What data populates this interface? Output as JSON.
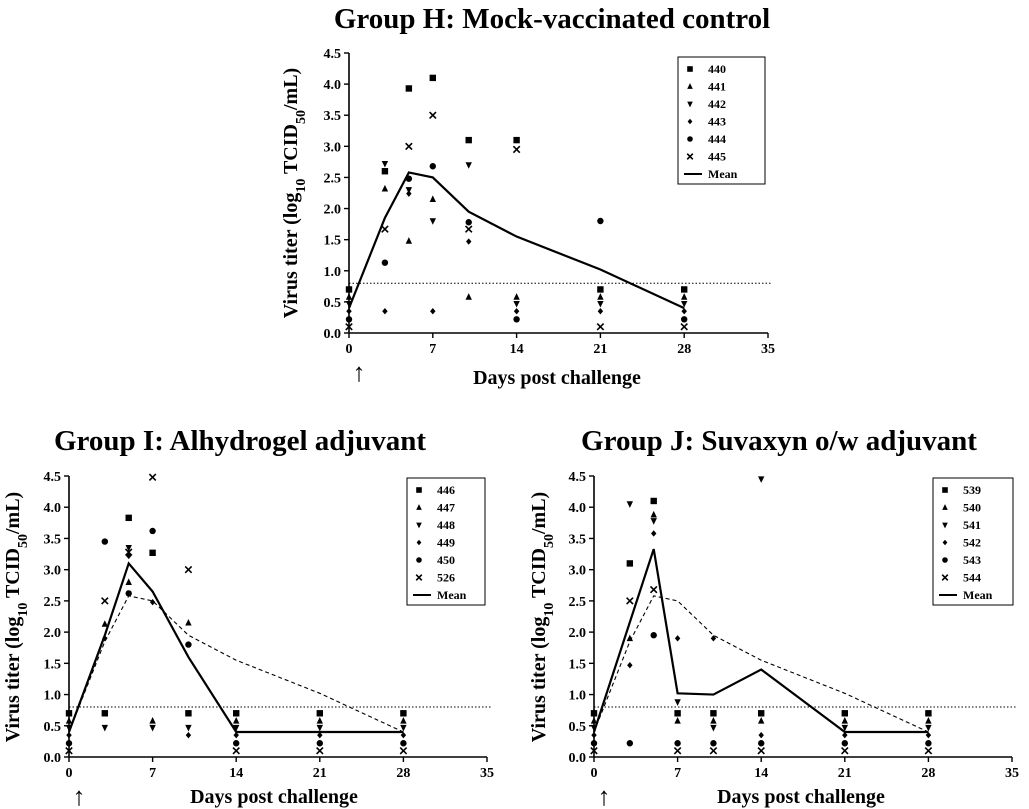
{
  "chart_data": [
    {
      "type": "scatter",
      "title": "Group H: Mock-vaccinated control",
      "xlabel": "Days post challenge",
      "ylabel_main": "Virus titer (log",
      "ylabel_sub10": "10",
      "ylabel_mid": " TCID",
      "ylabel_sub50": "50",
      "ylabel_end": "/mL)",
      "xlim": [
        0,
        35
      ],
      "ylim": [
        0,
        4.5
      ],
      "xticks": [
        "0",
        "7",
        "14",
        "21",
        "28",
        "35"
      ],
      "yticks": [
        "0.0",
        "0.5",
        "1.0",
        "1.5",
        "2.0",
        "2.5",
        "3.0",
        "3.5",
        "4.0",
        "4.5"
      ],
      "detection_limit": 0.8,
      "challenge_arrow": "↑",
      "legend_placement": "top-right",
      "series": [
        {
          "name": "440",
          "marker": "square",
          "points": [
            [
              0,
              0.7
            ],
            [
              3,
              2.6
            ],
            [
              5,
              3.93
            ],
            [
              7,
              4.1
            ],
            [
              10,
              3.1
            ],
            [
              14,
              3.1
            ],
            [
              21,
              0.7
            ],
            [
              28,
              0.7
            ]
          ]
        },
        {
          "name": "441",
          "marker": "triangle-up",
          "points": [
            [
              0,
              0.58
            ],
            [
              3,
              2.32
            ],
            [
              5,
              1.48
            ],
            [
              7,
              2.15
            ],
            [
              10,
              0.58
            ],
            [
              14,
              0.58
            ],
            [
              21,
              0.58
            ],
            [
              28,
              0.58
            ]
          ]
        },
        {
          "name": "442",
          "marker": "triangle-down",
          "points": [
            [
              0,
              0.47
            ],
            [
              3,
              2.72
            ],
            [
              5,
              2.3
            ],
            [
              7,
              1.8
            ],
            [
              10,
              2.7
            ],
            [
              14,
              0.47
            ],
            [
              21,
              0.47
            ],
            [
              28,
              0.47
            ]
          ]
        },
        {
          "name": "443",
          "marker": "diamond",
          "points": [
            [
              0,
              0.35
            ],
            [
              3,
              0.35
            ],
            [
              5,
              2.24
            ],
            [
              7,
              0.35
            ],
            [
              10,
              1.47
            ],
            [
              14,
              0.35
            ],
            [
              21,
              0.35
            ],
            [
              28,
              0.35
            ]
          ]
        },
        {
          "name": "444",
          "marker": "circle",
          "points": [
            [
              0,
              0.22
            ],
            [
              3,
              1.13
            ],
            [
              5,
              2.48
            ],
            [
              7,
              2.68
            ],
            [
              10,
              1.78
            ],
            [
              14,
              0.22
            ],
            [
              21,
              1.8
            ],
            [
              28,
              0.22
            ]
          ]
        },
        {
          "name": "445",
          "marker": "x",
          "points": [
            [
              0,
              0.1
            ],
            [
              3,
              1.67
            ],
            [
              5,
              3.0
            ],
            [
              7,
              3.5
            ],
            [
              10,
              1.67
            ],
            [
              14,
              2.95
            ],
            [
              21,
              0.1
            ],
            [
              28,
              0.1
            ]
          ]
        }
      ],
      "mean": {
        "name": "Mean",
        "points": [
          [
            0,
            0.4
          ],
          [
            3,
            1.85
          ],
          [
            5,
            2.58
          ],
          [
            7,
            2.5
          ],
          [
            10,
            1.95
          ],
          [
            14,
            1.55
          ],
          [
            21,
            1.02
          ],
          [
            28,
            0.4
          ]
        ]
      },
      "reference_mean": null
    },
    {
      "type": "scatter",
      "title": "Group I: Alhydrogel adjuvant",
      "xlabel": "Days post challenge",
      "ylabel_main": "Virus titer (log",
      "ylabel_sub10": "10",
      "ylabel_mid": " TCID",
      "ylabel_sub50": "50",
      "ylabel_end": "/mL)",
      "xlim": [
        0,
        35
      ],
      "ylim": [
        0,
        4.5
      ],
      "xticks": [
        "0",
        "7",
        "14",
        "21",
        "28",
        "35"
      ],
      "yticks": [
        "0.0",
        "0.5",
        "1.0",
        "1.5",
        "2.0",
        "2.5",
        "3.0",
        "3.5",
        "4.0",
        "4.5"
      ],
      "detection_limit": 0.8,
      "challenge_arrow": "↑",
      "legend_placement": "top-right",
      "series": [
        {
          "name": "446",
          "marker": "square",
          "points": [
            [
              0,
              0.7
            ],
            [
              3,
              0.7
            ],
            [
              5,
              3.83
            ],
            [
              7,
              3.27
            ],
            [
              10,
              0.7
            ],
            [
              14,
              0.7
            ],
            [
              21,
              0.7
            ],
            [
              28,
              0.7
            ]
          ]
        },
        {
          "name": "447",
          "marker": "triangle-up",
          "points": [
            [
              0,
              0.58
            ],
            [
              3,
              2.13
            ],
            [
              5,
              2.8
            ],
            [
              7,
              0.58
            ],
            [
              10,
              2.15
            ],
            [
              14,
              0.58
            ],
            [
              21,
              0.58
            ],
            [
              28,
              0.58
            ]
          ]
        },
        {
          "name": "448",
          "marker": "triangle-down",
          "points": [
            [
              0,
              0.47
            ],
            [
              3,
              0.47
            ],
            [
              5,
              3.35
            ],
            [
              7,
              0.47
            ],
            [
              10,
              0.47
            ],
            [
              14,
              0.47
            ],
            [
              21,
              0.47
            ],
            [
              28,
              0.47
            ]
          ]
        },
        {
          "name": "449",
          "marker": "diamond",
          "points": [
            [
              0,
              0.35
            ],
            [
              3,
              1.9
            ],
            [
              5,
              3.22
            ],
            [
              7,
              2.48
            ],
            [
              10,
              0.35
            ],
            [
              14,
              0.35
            ],
            [
              21,
              0.35
            ],
            [
              28,
              0.35
            ]
          ]
        },
        {
          "name": "450",
          "marker": "circle",
          "points": [
            [
              0,
              0.22
            ],
            [
              3,
              3.45
            ],
            [
              5,
              2.62
            ],
            [
              7,
              3.62
            ],
            [
              10,
              1.8
            ],
            [
              14,
              0.22
            ],
            [
              21,
              0.22
            ],
            [
              28,
              0.22
            ]
          ]
        },
        {
          "name": "526",
          "marker": "x",
          "points": [
            [
              0,
              0.1
            ],
            [
              3,
              2.5
            ],
            [
              5,
              3.28
            ],
            [
              7,
              4.48
            ],
            [
              10,
              3.0
            ],
            [
              14,
              0.1
            ],
            [
              21,
              0.1
            ],
            [
              28,
              0.1
            ]
          ]
        }
      ],
      "mean": {
        "name": "Mean",
        "points": [
          [
            0,
            0.4
          ],
          [
            3,
            1.95
          ],
          [
            5,
            3.1
          ],
          [
            7,
            2.65
          ],
          [
            10,
            1.6
          ],
          [
            14,
            0.4
          ],
          [
            21,
            0.4
          ],
          [
            28,
            0.4
          ]
        ]
      },
      "reference_mean": {
        "points": [
          [
            0,
            0.4
          ],
          [
            3,
            1.85
          ],
          [
            5,
            2.58
          ],
          [
            7,
            2.5
          ],
          [
            10,
            1.95
          ],
          [
            14,
            1.55
          ],
          [
            21,
            1.02
          ],
          [
            28,
            0.4
          ]
        ]
      }
    },
    {
      "type": "scatter",
      "title": "Group J: Suvaxyn o/w adjuvant",
      "xlabel": "Days post challenge",
      "ylabel_main": "Virus titer (log",
      "ylabel_sub10": "10",
      "ylabel_mid": " TCID",
      "ylabel_sub50": "50",
      "ylabel_end": "/mL)",
      "xlim": [
        0,
        35
      ],
      "ylim": [
        0,
        4.5
      ],
      "xticks": [
        "0",
        "7",
        "14",
        "21",
        "28",
        "35"
      ],
      "yticks": [
        "0.0",
        "0.5",
        "1.0",
        "1.5",
        "2.0",
        "2.5",
        "3.0",
        "3.5",
        "4.0",
        "4.5"
      ],
      "detection_limit": 0.8,
      "challenge_arrow": "↑",
      "legend_placement": "top-right",
      "series": [
        {
          "name": "539",
          "marker": "square",
          "points": [
            [
              0,
              0.7
            ],
            [
              3,
              3.1
            ],
            [
              5,
              4.1
            ],
            [
              7,
              0.7
            ],
            [
              10,
              0.7
            ],
            [
              14,
              0.7
            ],
            [
              21,
              0.7
            ],
            [
              28,
              0.7
            ]
          ]
        },
        {
          "name": "540",
          "marker": "triangle-up",
          "points": [
            [
              0,
              0.58
            ],
            [
              3,
              1.9
            ],
            [
              5,
              3.88
            ],
            [
              7,
              0.58
            ],
            [
              10,
              0.58
            ],
            [
              14,
              0.58
            ],
            [
              21,
              0.58
            ],
            [
              28,
              0.58
            ]
          ]
        },
        {
          "name": "541",
          "marker": "triangle-down",
          "points": [
            [
              0,
              0.47
            ],
            [
              3,
              4.05
            ],
            [
              5,
              3.78
            ],
            [
              7,
              0.88
            ],
            [
              10,
              0.47
            ],
            [
              14,
              4.45
            ],
            [
              21,
              0.47
            ],
            [
              28,
              0.47
            ]
          ]
        },
        {
          "name": "542",
          "marker": "diamond",
          "points": [
            [
              0,
              0.35
            ],
            [
              3,
              1.47
            ],
            [
              5,
              3.58
            ],
            [
              7,
              1.9
            ],
            [
              10,
              1.9
            ],
            [
              14,
              0.35
            ],
            [
              21,
              0.35
            ],
            [
              28,
              0.35
            ]
          ]
        },
        {
          "name": "543",
          "marker": "circle",
          "points": [
            [
              0,
              0.22
            ],
            [
              3,
              0.22
            ],
            [
              5,
              1.95
            ],
            [
              7,
              0.22
            ],
            [
              10,
              0.22
            ],
            [
              14,
              0.22
            ],
            [
              21,
              0.22
            ],
            [
              28,
              0.22
            ]
          ]
        },
        {
          "name": "544",
          "marker": "x",
          "points": [
            [
              0,
              0.1
            ],
            [
              3,
              2.5
            ],
            [
              5,
              2.68
            ],
            [
              7,
              0.1
            ],
            [
              10,
              0.1
            ],
            [
              14,
              0.1
            ],
            [
              21,
              0.1
            ],
            [
              28,
              0.1
            ]
          ]
        }
      ],
      "mean": {
        "name": "Mean",
        "points": [
          [
            0,
            0.4
          ],
          [
            5,
            3.33
          ],
          [
            7,
            1.02
          ],
          [
            10,
            1.0
          ],
          [
            14,
            1.4
          ],
          [
            21,
            0.4
          ],
          [
            28,
            0.4
          ]
        ]
      },
      "reference_mean": {
        "points": [
          [
            0,
            0.4
          ],
          [
            3,
            1.85
          ],
          [
            5,
            2.58
          ],
          [
            7,
            2.5
          ],
          [
            10,
            1.95
          ],
          [
            14,
            1.55
          ],
          [
            21,
            1.02
          ],
          [
            28,
            0.4
          ]
        ]
      }
    }
  ]
}
